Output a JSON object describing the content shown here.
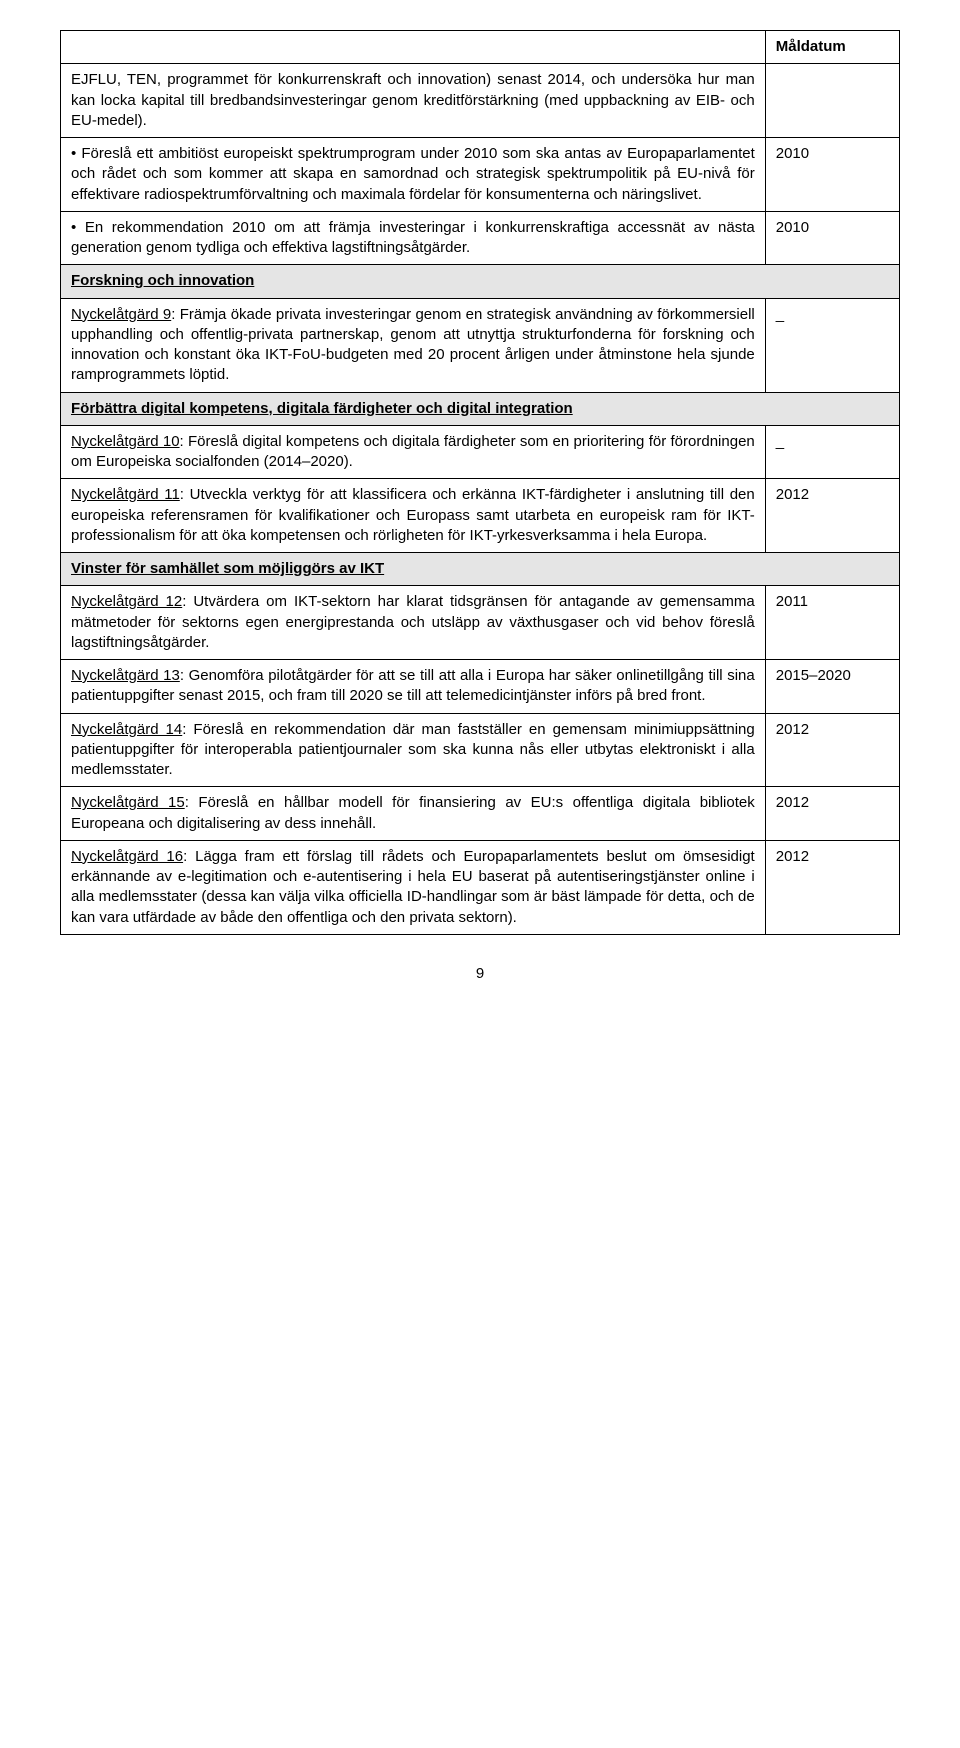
{
  "header": {
    "maldatum": "Måldatum"
  },
  "rows": [
    {
      "type": "body",
      "text": "EJFLU, TEN, programmet för konkurrenskraft och innovation) senast 2014, och undersöka hur man kan locka kapital till bredbandsinvesteringar genom kreditförstärkning (med uppbackning av EIB- och EU-medel).",
      "date": ""
    },
    {
      "type": "body",
      "leadBullet": true,
      "text": "Föreslå ett ambitiöst europeiskt spektrumprogram under 2010 som ska antas av Europaparlamentet och rådet och som kommer att skapa en samordnad och strategisk spektrumpolitik på EU-nivå för effektivare radiospektrumförvaltning och maximala fördelar för konsumenterna och näringslivet.",
      "date": "2010"
    },
    {
      "type": "body",
      "leadBullet": true,
      "text": "En rekommendation 2010 om att främja investeringar i konkurrenskraftiga accessnät av nästa generation genom tydliga och effektiva lagstiftningsåtgärder.",
      "date": "2010"
    },
    {
      "type": "section",
      "text": "Forskning och innovation"
    },
    {
      "type": "body",
      "lead": "Nyckelåtgärd 9",
      "text": ": Främja ökade privata investeringar genom en strategisk användning av förkommersiell upphandling och offentlig-privata partnerskap, genom att utnyttja strukturfonderna för forskning och innovation och konstant öka IKT-FoU-budgeten med 20 procent årligen under åtminstone hela sjunde ramprogrammets löptid.",
      "date": "_"
    },
    {
      "type": "section",
      "text": "Förbättra digital kompetens, digitala färdigheter och digital integration"
    },
    {
      "type": "body",
      "lead": "Nyckelåtgärd 10",
      "text": ": Föreslå digital kompetens och digitala färdigheter som en prioritering för förordningen om Europeiska socialfonden (2014–2020).",
      "date": "_"
    },
    {
      "type": "body",
      "lead": "Nyckelåtgärd 11",
      "text": ": Utveckla verktyg för att klassificera och erkänna IKT-färdigheter i anslutning till den europeiska referensramen för kvalifikationer och Europass samt utarbeta en europeisk ram för IKT-professionalism för att öka kompetensen och rörligheten för IKT-yrkesverksamma i hela Europa.",
      "date": "2012"
    },
    {
      "type": "section",
      "text": "Vinster för samhället som möjliggörs av IKT"
    },
    {
      "type": "body",
      "lead": "Nyckelåtgärd 12",
      "text": ": Utvärdera om IKT-sektorn har klarat tidsgränsen för antagande av gemensamma mätmetoder för sektorns egen energiprestanda och utsläpp av växthusgaser och vid behov föreslå lagstiftningsåtgärder.",
      "date": "2011"
    },
    {
      "type": "body",
      "lead": "Nyckelåtgärd 13",
      "text": ": Genomföra pilotåtgärder för att se till att alla i Europa har säker onlinetillgång till sina patientuppgifter senast 2015, och fram till 2020 se till att telemedicintjänster införs på bred front.",
      "date": "2015–2020"
    },
    {
      "type": "body",
      "lead": "Nyckelåtgärd 14",
      "text": ": Föreslå en rekommendation där man fastställer en gemensam minimiuppsättning patientuppgifter för interoperabla patientjournaler som ska kunna nås eller utbytas elektroniskt i alla medlemsstater.",
      "date": "2012"
    },
    {
      "type": "body",
      "lead": "Nyckelåtgärd 15",
      "text": ": Föreslå en hållbar modell för finansiering av EU:s offentliga digitala bibliotek Europeana och digitalisering av dess innehåll.",
      "date": "2012"
    },
    {
      "type": "body",
      "lead": "Nyckelåtgärd 16",
      "text": ": Lägga fram ett förslag till rådets och Europaparlamentets beslut om ömsesidigt erkännande av e-legitimation och e-autentisering i hela EU baserat på autentiseringstjänster online i alla medlemsstater (dessa kan välja vilka officiella ID-handlingar som är bäst lämpade för detta, och de kan vara utfärdade av både den offentliga och den privata sektorn).",
      "date": "2012"
    }
  ],
  "pageNumber": "9",
  "style": {
    "background_color": "#ffffff",
    "text_color": "#000000",
    "section_bg": "#e5e5e5",
    "border_color": "#000000",
    "font_family": "Arial",
    "font_size_pt": 11,
    "table_col_widths_pct": [
      84,
      16
    ]
  }
}
